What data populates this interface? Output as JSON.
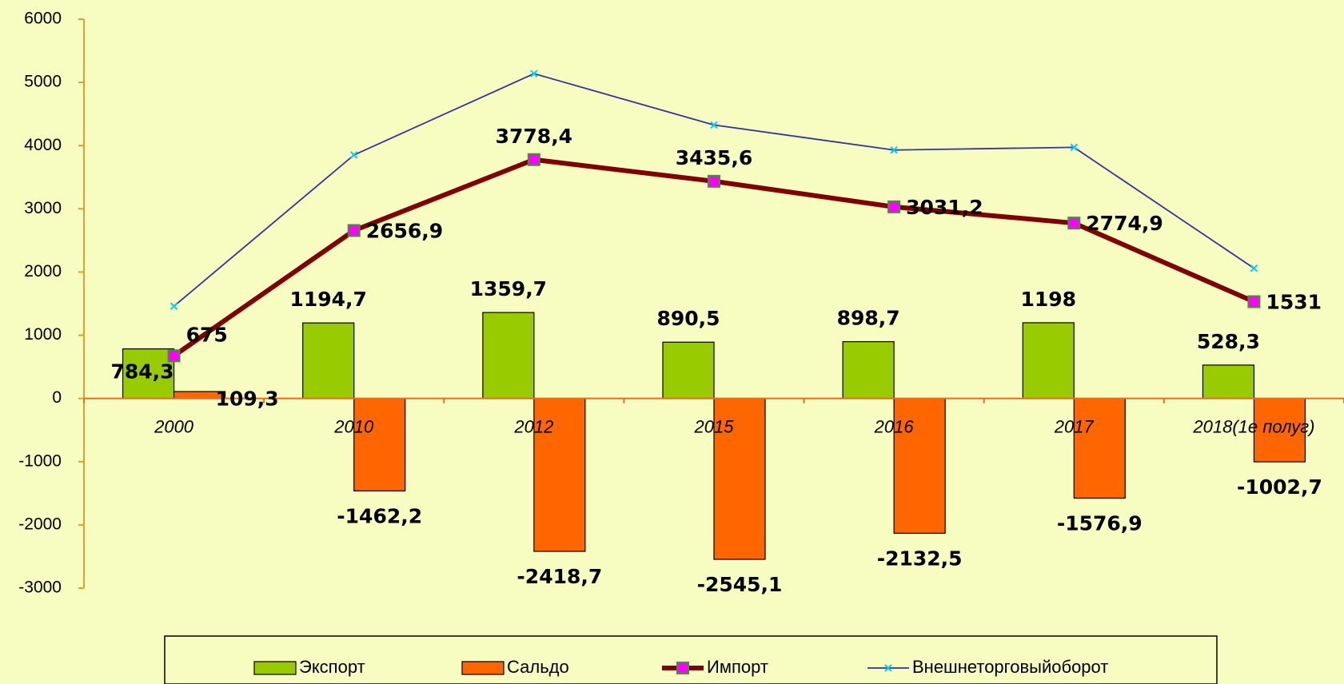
{
  "chart_data": {
    "type": "bar_line",
    "categories": [
      "2000",
      "2010",
      "2012",
      "2015",
      "2016",
      "2017",
      "2018(1е полуг)"
    ],
    "series": [
      {
        "name": "Экспорт",
        "type": "bar",
        "color": "#99cc00",
        "values": [
          784.3,
          1194.7,
          1359.7,
          890.5,
          898.7,
          1198,
          528.3
        ],
        "value_labels": [
          "784,3",
          "1194,7",
          "1359,7",
          "890,5",
          "898,7",
          "1198",
          "528,3"
        ]
      },
      {
        "name": "Сальдо",
        "type": "bar",
        "color": "#ff6600",
        "values": [
          109.3,
          -1462.2,
          -2418.7,
          -2545.1,
          -2132.5,
          -1576.9,
          -1002.7
        ],
        "value_labels": [
          "109,3",
          "-1462,2",
          "-2418,7",
          "-2545,1",
          "-2132,5",
          "-1576,9",
          "-1002,7"
        ]
      },
      {
        "name": "Импорт",
        "type": "line",
        "color": "#800000",
        "marker_color": "#ff00ff",
        "values": [
          675,
          2656.9,
          3778.4,
          3435.6,
          3031.2,
          2774.9,
          1531
        ],
        "value_labels": [
          "675",
          "2656,9",
          "3778,4",
          "3435,6",
          "3031,2",
          "2774,9",
          "1531"
        ]
      },
      {
        "name": "Внешнеторговыйоборот",
        "type": "line",
        "color": "#333399",
        "marker_color": "#00ccff",
        "values": [
          1459.3,
          3851.6,
          5138.1,
          4326.1,
          3929.9,
          3972.9,
          2059.3
        ]
      }
    ],
    "ylim": [
      -3000,
      6000
    ],
    "yticks": [
      -3000,
      -2000,
      -1000,
      0,
      1000,
      2000,
      3000,
      4000,
      5000,
      6000
    ],
    "legend": "bottom"
  }
}
